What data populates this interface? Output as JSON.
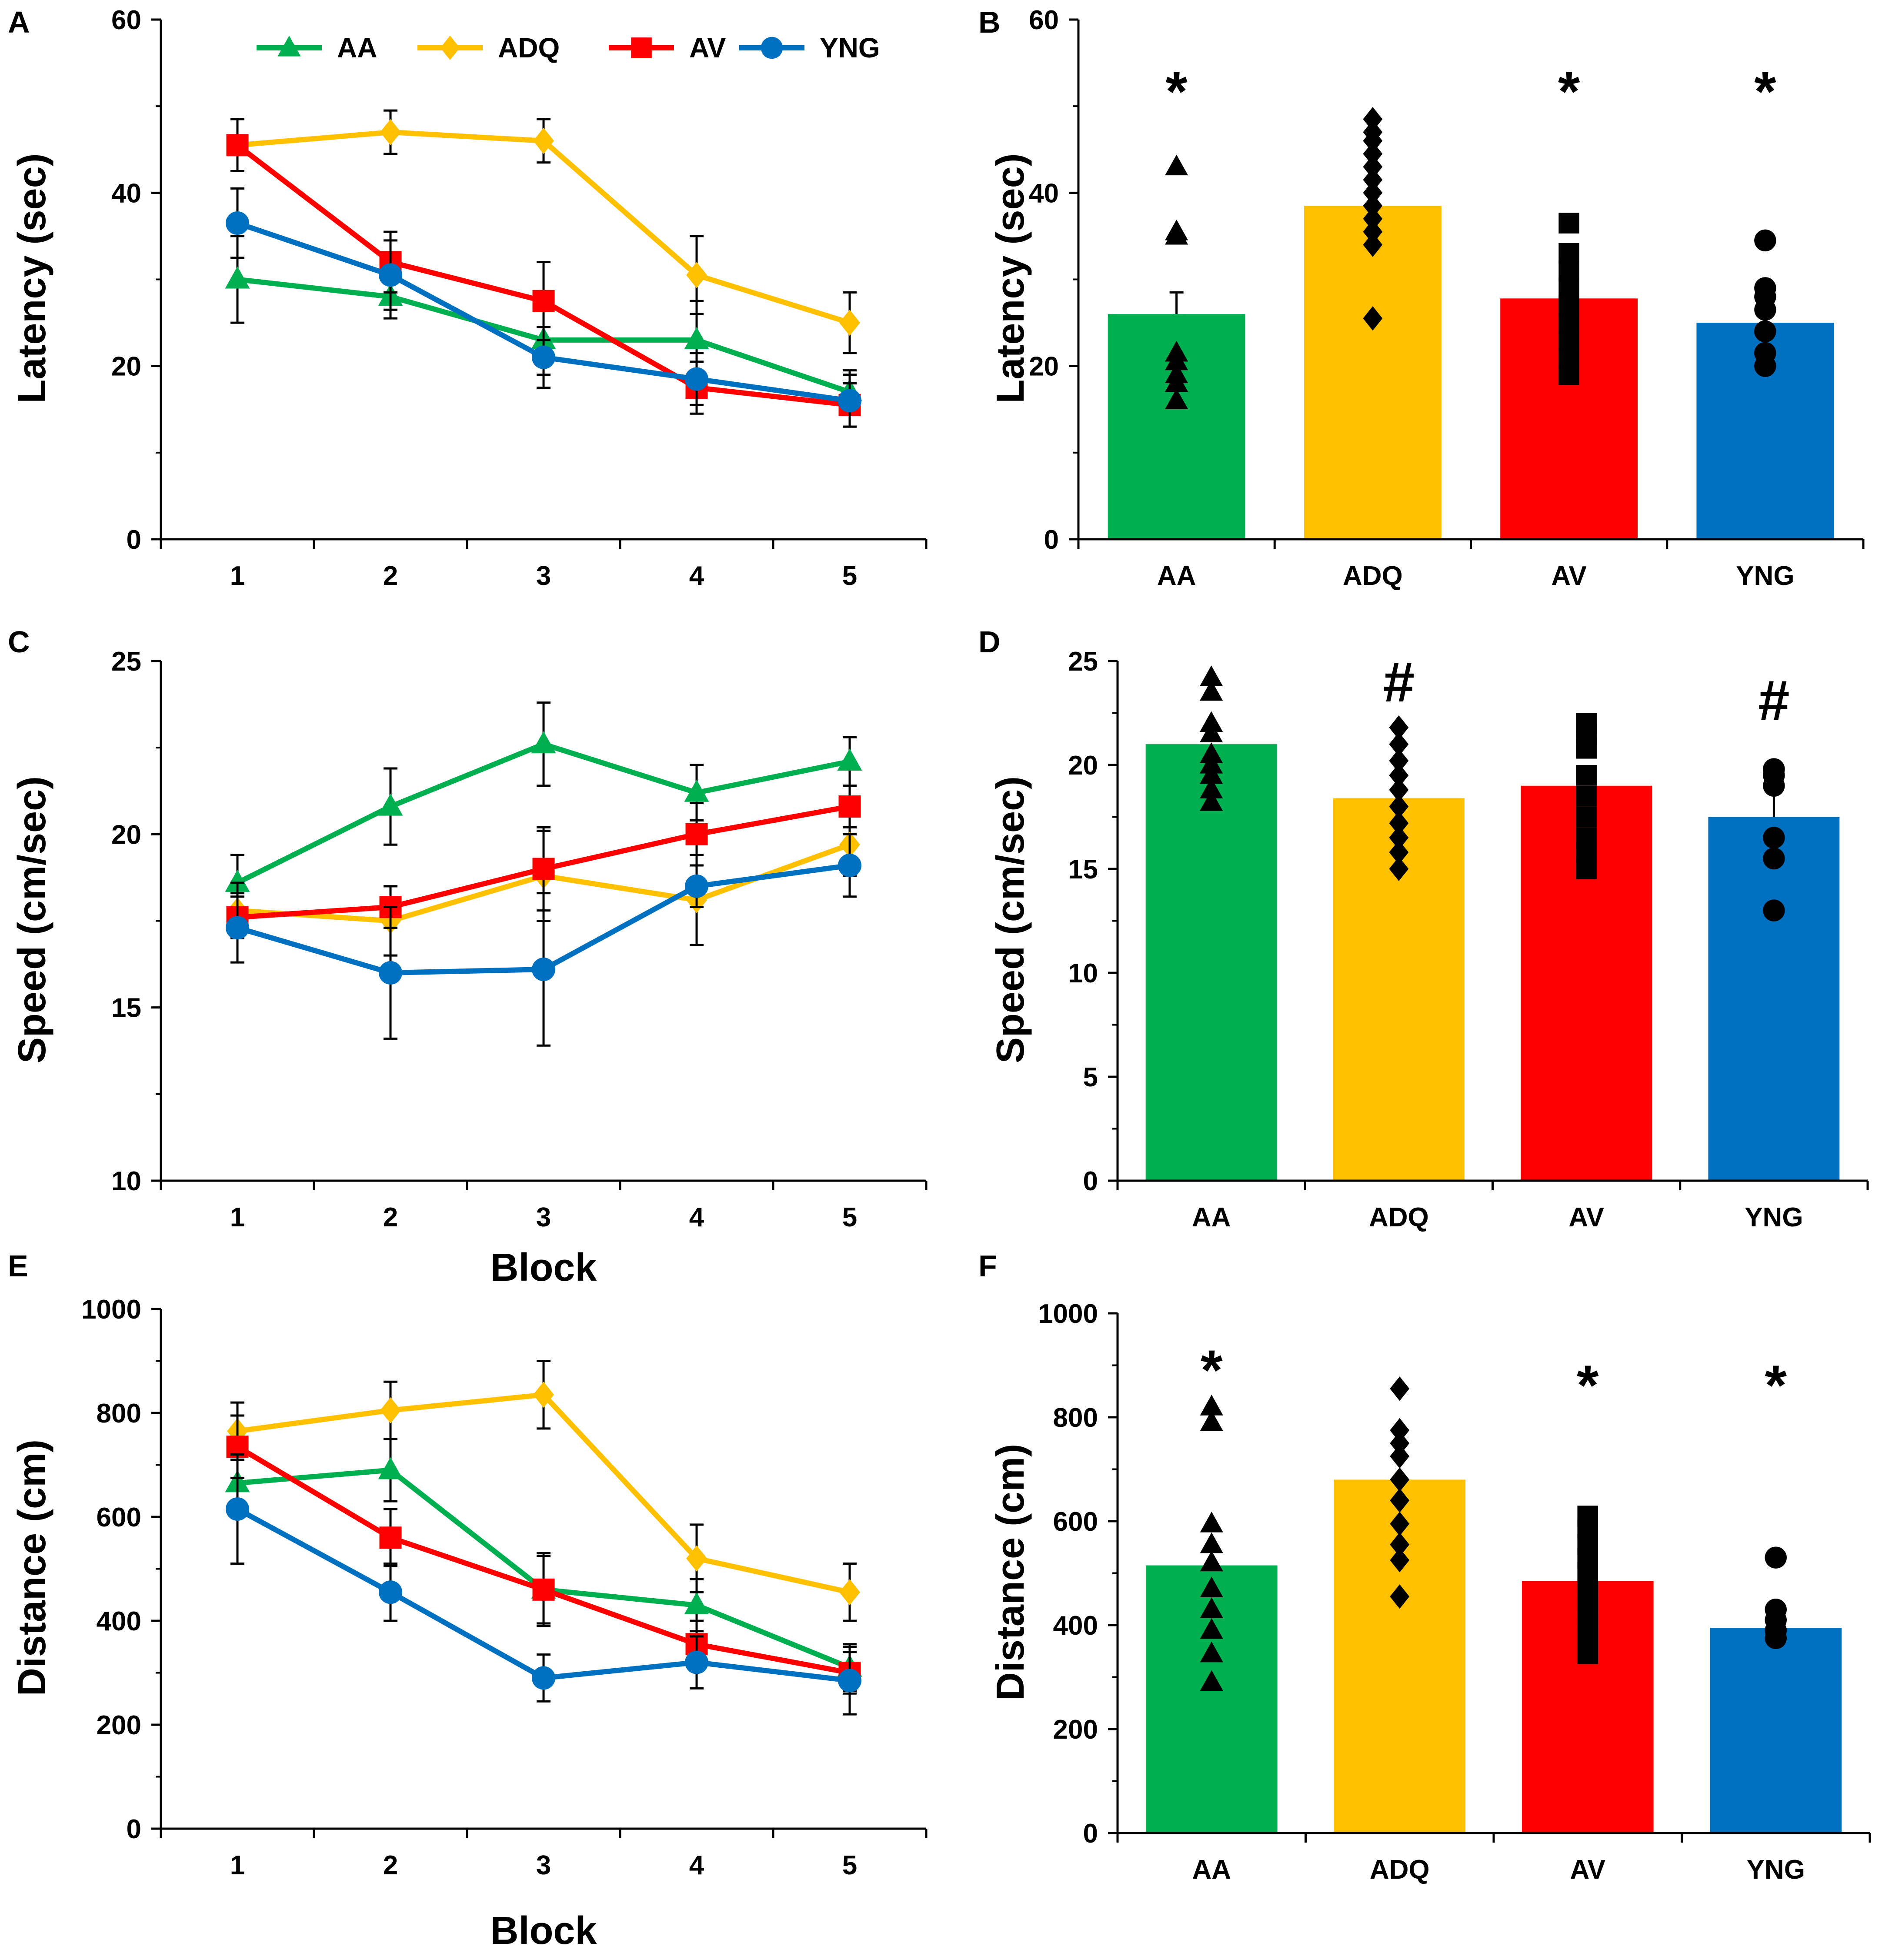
{
  "colors": {
    "AA": "#00B050",
    "ADQ": "#FFC000",
    "AV": "#FF0000",
    "YNG": "#0070C0",
    "axis": "#000000",
    "point": "#000000"
  },
  "legend": [
    {
      "key": "AA",
      "label": "AA",
      "marker": "triangle"
    },
    {
      "key": "ADQ",
      "label": "ADQ",
      "marker": "diamond"
    },
    {
      "key": "AV",
      "label": "AV",
      "marker": "square"
    },
    {
      "key": "YNG",
      "label": "YNG",
      "marker": "circle"
    }
  ],
  "chart_data": [
    {
      "panel": "A",
      "type": "line",
      "title": "",
      "xlabel": "",
      "ylabel": "Latency (sec)",
      "x": [
        1,
        2,
        3,
        4,
        5
      ],
      "xlim": [
        0.5,
        5.5
      ],
      "ylim": [
        0,
        60
      ],
      "yticks": [
        "0",
        "20",
        "40",
        "60"
      ],
      "xticks": [
        "1",
        "2",
        "3",
        "4",
        "5"
      ],
      "legend_position": "top",
      "series": [
        {
          "name": "AA",
          "values": [
            30,
            28,
            23,
            23,
            17
          ],
          "errors": [
            5,
            2.5,
            4,
            4.5,
            2.5
          ]
        },
        {
          "name": "ADQ",
          "values": [
            45.5,
            47,
            46,
            30.5,
            25
          ],
          "errors": [
            3,
            2.5,
            2.5,
            4.5,
            3.5
          ]
        },
        {
          "name": "AV",
          "values": [
            45.5,
            32,
            27.5,
            17.5,
            15.5
          ],
          "errors": [
            3,
            3.5,
            4.5,
            3,
            2.5
          ]
        },
        {
          "name": "YNG",
          "values": [
            36.5,
            30.5,
            21,
            18.5,
            16
          ],
          "errors": [
            4,
            4,
            3.5,
            3,
            3
          ]
        }
      ]
    },
    {
      "panel": "B",
      "type": "bar",
      "title": "",
      "xlabel": "",
      "ylabel": "Latency (sec)",
      "categories": [
        "AA",
        "ADQ",
        "AV",
        "YNG"
      ],
      "ylim": [
        0,
        60
      ],
      "yticks": [
        "0",
        "20",
        "40",
        "60"
      ],
      "values": [
        26,
        38.5,
        27.8,
        25
      ],
      "errors": [
        2.5,
        0,
        0,
        1.5
      ],
      "significance": [
        "*",
        "",
        "*",
        "*"
      ],
      "points": [
        [
          43,
          35.5,
          35,
          21.5,
          20.5,
          18,
          16,
          19
        ],
        [
          48.5,
          47,
          46,
          44.5,
          43,
          41.5,
          40,
          38.5,
          37,
          35.5,
          34,
          25.5
        ],
        [
          36.5,
          33,
          31,
          29,
          27,
          25,
          23,
          21,
          19
        ],
        [
          34.5,
          29,
          28,
          26.5,
          24,
          21.5,
          20
        ]
      ]
    },
    {
      "panel": "C",
      "type": "line",
      "title": "",
      "xlabel": "Block",
      "ylabel": "Speed (cm/sec)",
      "x": [
        1,
        2,
        3,
        4,
        5
      ],
      "xlim": [
        0.5,
        5.5
      ],
      "ylim": [
        10,
        25
      ],
      "yticks": [
        "10",
        "15",
        "20",
        "25"
      ],
      "xticks": [
        "1",
        "2",
        "3",
        "4",
        "5"
      ],
      "series": [
        {
          "name": "AA",
          "values": [
            18.6,
            20.8,
            22.6,
            21.2,
            22.1
          ],
          "errors": [
            0.8,
            1.1,
            1.2,
            0.8,
            0.7
          ]
        },
        {
          "name": "ADQ",
          "values": [
            17.8,
            17.5,
            18.8,
            18.1,
            19.7
          ],
          "errors": [
            0.8,
            1.0,
            1.3,
            1.3,
            0.9
          ]
        },
        {
          "name": "AV",
          "values": [
            17.6,
            17.9,
            19.0,
            20.0,
            20.8
          ],
          "errors": [
            0.6,
            0.6,
            1.2,
            0.9,
            0.6
          ]
        },
        {
          "name": "YNG",
          "values": [
            17.3,
            16.0,
            16.1,
            18.5,
            19.1
          ],
          "errors": [
            1.0,
            1.9,
            2.2,
            0.6,
            0.9
          ]
        }
      ]
    },
    {
      "panel": "D",
      "type": "bar",
      "title": "",
      "xlabel": "",
      "ylabel": "Speed (cm/sec)",
      "categories": [
        "AA",
        "ADQ",
        "AV",
        "YNG"
      ],
      "ylim": [
        0,
        25
      ],
      "yticks": [
        "0",
        "5",
        "10",
        "15",
        "20",
        "25"
      ],
      "values": [
        21,
        18.4,
        19,
        17.5
      ],
      "errors": [
        0,
        0,
        0,
        1.2
      ],
      "significance": [
        "",
        "#",
        "",
        "#"
      ],
      "points": [
        [
          24.2,
          23.5,
          22.0,
          21.5,
          20.5,
          20.0,
          19.5,
          18.8,
          18.2
        ],
        [
          21.8,
          21.0,
          20.2,
          19.5,
          18.8,
          18.0,
          17.2,
          16.5,
          15.8,
          15.0
        ],
        [
          22.0,
          21.5,
          20.8,
          19.5,
          18.5,
          17.5,
          16.5,
          15.8,
          15.0
        ],
        [
          19.8,
          19.5,
          19.0,
          16.5,
          15.5,
          13.0
        ]
      ]
    },
    {
      "panel": "E",
      "type": "line",
      "title": "",
      "xlabel": "Block",
      "ylabel": "Distance (cm)",
      "x": [
        1,
        2,
        3,
        4,
        5
      ],
      "xlim": [
        0.5,
        5.5
      ],
      "ylim": [
        0,
        1000
      ],
      "yticks": [
        "0",
        "200",
        "400",
        "600",
        "800",
        "1000"
      ],
      "xticks": [
        "1",
        "2",
        "3",
        "4",
        "5"
      ],
      "series": [
        {
          "name": "AA",
          "values": [
            665,
            690,
            460,
            430,
            310
          ],
          "errors": [
            60,
            60,
            70,
            50,
            45
          ]
        },
        {
          "name": "ADQ",
          "values": [
            765,
            805,
            835,
            520,
            455
          ],
          "errors": [
            55,
            55,
            65,
            65,
            55
          ]
        },
        {
          "name": "AV",
          "values": [
            735,
            560,
            460,
            355,
            300
          ],
          "errors": [
            60,
            55,
            65,
            45,
            40
          ]
        },
        {
          "name": "YNG",
          "values": [
            615,
            455,
            290,
            320,
            285
          ],
          "errors": [
            105,
            55,
            45,
            50,
            65
          ]
        }
      ]
    },
    {
      "panel": "F",
      "type": "bar",
      "title": "",
      "xlabel": "",
      "ylabel": "Distance (cm)",
      "categories": [
        "AA",
        "ADQ",
        "AV",
        "YNG"
      ],
      "ylim": [
        0,
        1000
      ],
      "yticks": [
        "0",
        "200",
        "400",
        "600",
        "800",
        "1000"
      ],
      "values": [
        515,
        680,
        485,
        395
      ],
      "errors": [
        0,
        0,
        0,
        0
      ],
      "significance": [
        "*",
        "",
        "*",
        "*"
      ],
      "points": [
        [
          820,
          790,
          595,
          555,
          520,
          470,
          430,
          390,
          345,
          290
        ],
        [
          855,
          775,
          750,
          725,
          680,
          640,
          595,
          555,
          525,
          455
        ],
        [
          610,
          585,
          555,
          530,
          500,
          470,
          440,
          410,
          380,
          345
        ],
        [
          530,
          430,
          410,
          390,
          375
        ]
      ]
    }
  ]
}
